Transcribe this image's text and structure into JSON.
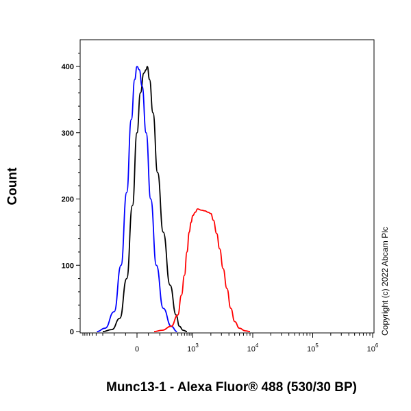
{
  "chart_data": {
    "type": "line",
    "title": "",
    "xlabel": "Munc13-1 - Alexa Fluor® 488 (530/30 BP)",
    "ylabel": "Count",
    "ylim": [
      0,
      440
    ],
    "y_ticks": [
      {
        "value": 0,
        "label": "0"
      },
      {
        "value": 100,
        "label": "100"
      },
      {
        "value": 200,
        "label": "200"
      },
      {
        "value": 300,
        "label": "300"
      },
      {
        "value": 400,
        "label": "400"
      }
    ],
    "x_scale": "biexponential",
    "x_ticks": [
      {
        "value": 0,
        "base": "0",
        "exp": ""
      },
      {
        "value": 1000,
        "base": "10",
        "exp": "3"
      },
      {
        "value": 10000,
        "base": "10",
        "exp": "4"
      },
      {
        "value": 100000,
        "base": "10",
        "exp": "5"
      },
      {
        "value": 1000000,
        "base": "10",
        "exp": "6"
      }
    ],
    "grid": false,
    "legend": "none",
    "series": [
      {
        "color": "#000000",
        "points": [
          [
            -300,
            0
          ],
          [
            -220,
            3
          ],
          [
            -150,
            20
          ],
          [
            -90,
            80
          ],
          [
            -40,
            190
          ],
          [
            0,
            300
          ],
          [
            30,
            360
          ],
          [
            60,
            390
          ],
          [
            80,
            395
          ],
          [
            90,
            400
          ],
          [
            110,
            380
          ],
          [
            140,
            330
          ],
          [
            180,
            240
          ],
          [
            230,
            150
          ],
          [
            290,
            70
          ],
          [
            360,
            25
          ],
          [
            440,
            8
          ],
          [
            550,
            2
          ],
          [
            700,
            0
          ]
        ]
      },
      {
        "color": "#0000ff",
        "points": [
          [
            -380,
            0
          ],
          [
            -280,
            5
          ],
          [
            -200,
            30
          ],
          [
            -140,
            100
          ],
          [
            -90,
            210
          ],
          [
            -50,
            320
          ],
          [
            -20,
            380
          ],
          [
            0,
            400
          ],
          [
            20,
            395
          ],
          [
            45,
            370
          ],
          [
            80,
            300
          ],
          [
            120,
            200
          ],
          [
            170,
            100
          ],
          [
            230,
            35
          ],
          [
            300,
            8
          ],
          [
            380,
            0
          ]
        ]
      },
      {
        "color": "#ff0000",
        "points": [
          [
            150,
            0
          ],
          [
            220,
            2
          ],
          [
            300,
            8
          ],
          [
            400,
            25
          ],
          [
            500,
            55
          ],
          [
            600,
            85
          ],
          [
            700,
            120
          ],
          [
            800,
            150
          ],
          [
            900,
            165
          ],
          [
            1000,
            175
          ],
          [
            1100,
            180
          ],
          [
            1200,
            185
          ],
          [
            1400,
            183
          ],
          [
            1600,
            182
          ],
          [
            1800,
            180
          ],
          [
            2000,
            178
          ],
          [
            2200,
            168
          ],
          [
            2500,
            148
          ],
          [
            2800,
            125
          ],
          [
            3200,
            95
          ],
          [
            3700,
            65
          ],
          [
            4300,
            35
          ],
          [
            5000,
            15
          ],
          [
            6000,
            5
          ],
          [
            7500,
            1
          ],
          [
            9000,
            0
          ]
        ]
      }
    ]
  },
  "copyright": "Copyright (c) 2022 Abcam Plc"
}
